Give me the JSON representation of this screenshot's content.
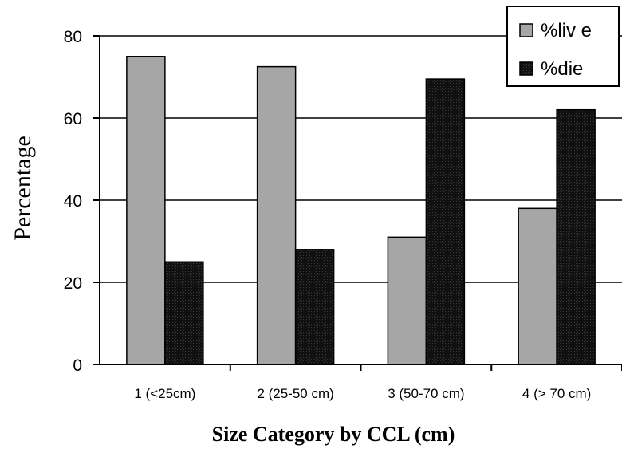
{
  "chart_data": {
    "type": "bar",
    "categories": [
      "1 (<25cm)",
      "2 (25-50 cm)",
      "3 (50-70 cm)",
      "4 (> 70 cm)"
    ],
    "series": [
      {
        "name": "%liv e",
        "values": [
          75,
          72.5,
          31,
          38
        ],
        "color": "#a6a6a6"
      },
      {
        "name": "%die",
        "values": [
          25,
          28,
          69.5,
          62
        ],
        "color": "#1a1a1a"
      }
    ],
    "title": "",
    "xlabel": "Size Category by CCL (cm)",
    "ylabel": "Percentage",
    "ylim": [
      0,
      80
    ],
    "yticks": [
      0,
      20,
      40,
      60,
      80
    ],
    "grid": true,
    "legend_position": "top-right"
  }
}
